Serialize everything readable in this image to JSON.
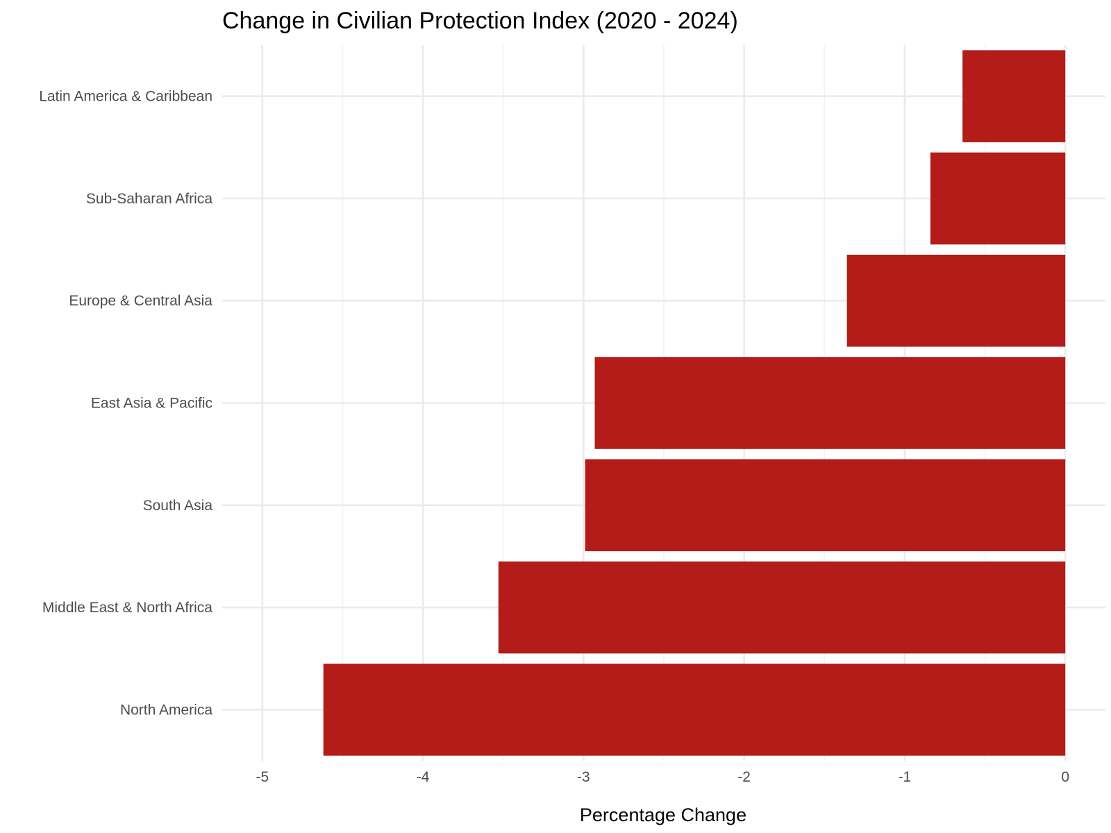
{
  "chart_data": {
    "type": "bar",
    "orientation": "horizontal",
    "title": "Change in Civilian Protection Index (2020 - 2024)",
    "xlabel": "Percentage Change",
    "ylabel": "",
    "categories": [
      "Latin America & Caribbean",
      "Sub-Saharan Africa",
      "Europe & Central Asia",
      "East Asia & Pacific",
      "South Asia",
      "Middle East & North Africa",
      "North America"
    ],
    "values": [
      -0.64,
      -0.84,
      -1.36,
      -2.93,
      -2.99,
      -3.53,
      -4.62
    ],
    "xlim": [
      -5.25,
      0.25
    ],
    "x_ticks": [
      "-5",
      "-4",
      "-3",
      "-2",
      "-1",
      "0"
    ],
    "x_tick_values": [
      -5,
      -4,
      -3,
      -2,
      -1,
      0
    ],
    "x_minor_values": [
      -4.5,
      -3.5,
      -2.5,
      -1.5,
      -0.5
    ],
    "grid": true,
    "legend": "none",
    "bar_color": "#b31c18"
  }
}
